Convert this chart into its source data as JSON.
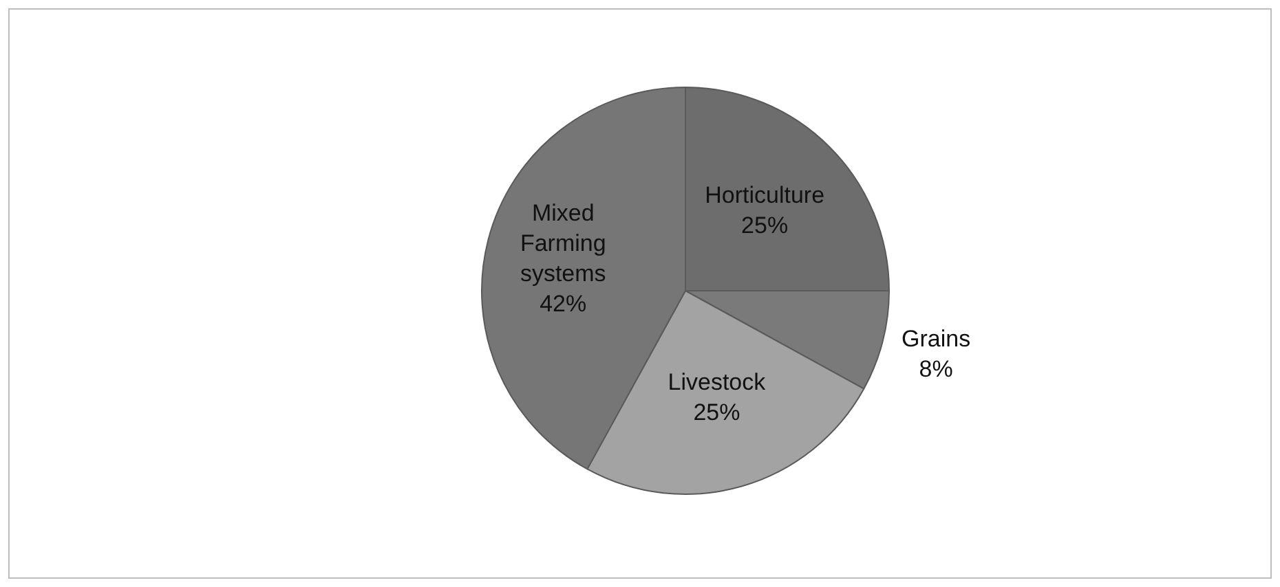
{
  "chart_data": {
    "type": "pie",
    "categories": [
      "Horticulture",
      "Grains",
      "Livestock",
      "Mixed Farming systems"
    ],
    "values": [
      25,
      8,
      25,
      42
    ],
    "value_labels": [
      "25%",
      "8%",
      "25%",
      "42%"
    ],
    "colors": [
      "#6d6d6d",
      "#7a7a7a",
      "#a3a3a3",
      "#767676"
    ],
    "legend": false
  }
}
